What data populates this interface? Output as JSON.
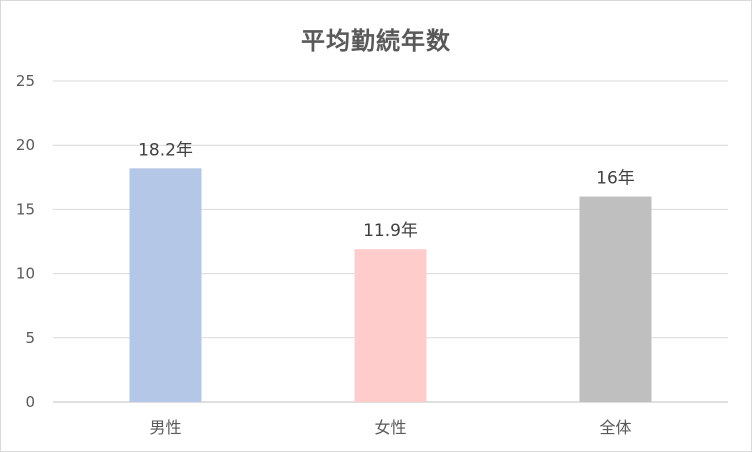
{
  "chart_data": {
    "type": "bar",
    "title": "平均勤続年数",
    "categories": [
      "男性",
      "女性",
      "全体"
    ],
    "values": [
      18.2,
      11.9,
      16
    ],
    "data_labels": [
      "18.2年",
      "11.9年",
      "16年"
    ],
    "bar_colors": [
      "#b4c7e7",
      "#ffcccc",
      "#bfbfbf"
    ],
    "ylim": [
      0,
      25
    ],
    "yticks": [
      "0",
      "5",
      "10",
      "15",
      "20",
      "25"
    ],
    "xlabel": "",
    "ylabel": "",
    "grid": true,
    "legend": "none"
  }
}
